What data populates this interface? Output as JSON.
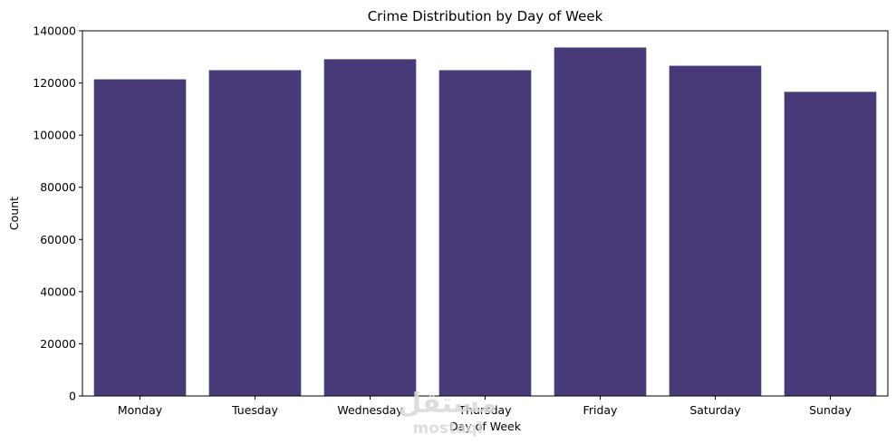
{
  "colors": {
    "bar": "#483a78",
    "axis": "#000000",
    "background": "#ffffff",
    "watermark": "#d9d9d9"
  },
  "watermark": {
    "arabic": "مستقل",
    "latin": "mostaql"
  },
  "chart_data": {
    "type": "bar",
    "title": "Crime Distribution by Day of Week",
    "xlabel": "Day of Week",
    "ylabel": "Count",
    "categories": [
      "Monday",
      "Tuesday",
      "Wednesday",
      "Thursday",
      "Friday",
      "Saturday",
      "Sunday"
    ],
    "values": [
      121400,
      124900,
      129100,
      124900,
      133600,
      126600,
      116600
    ],
    "ylim": [
      0,
      140000
    ],
    "yticks": [
      0,
      20000,
      40000,
      60000,
      80000,
      100000,
      120000,
      140000
    ],
    "grid": false,
    "legend": "none"
  }
}
